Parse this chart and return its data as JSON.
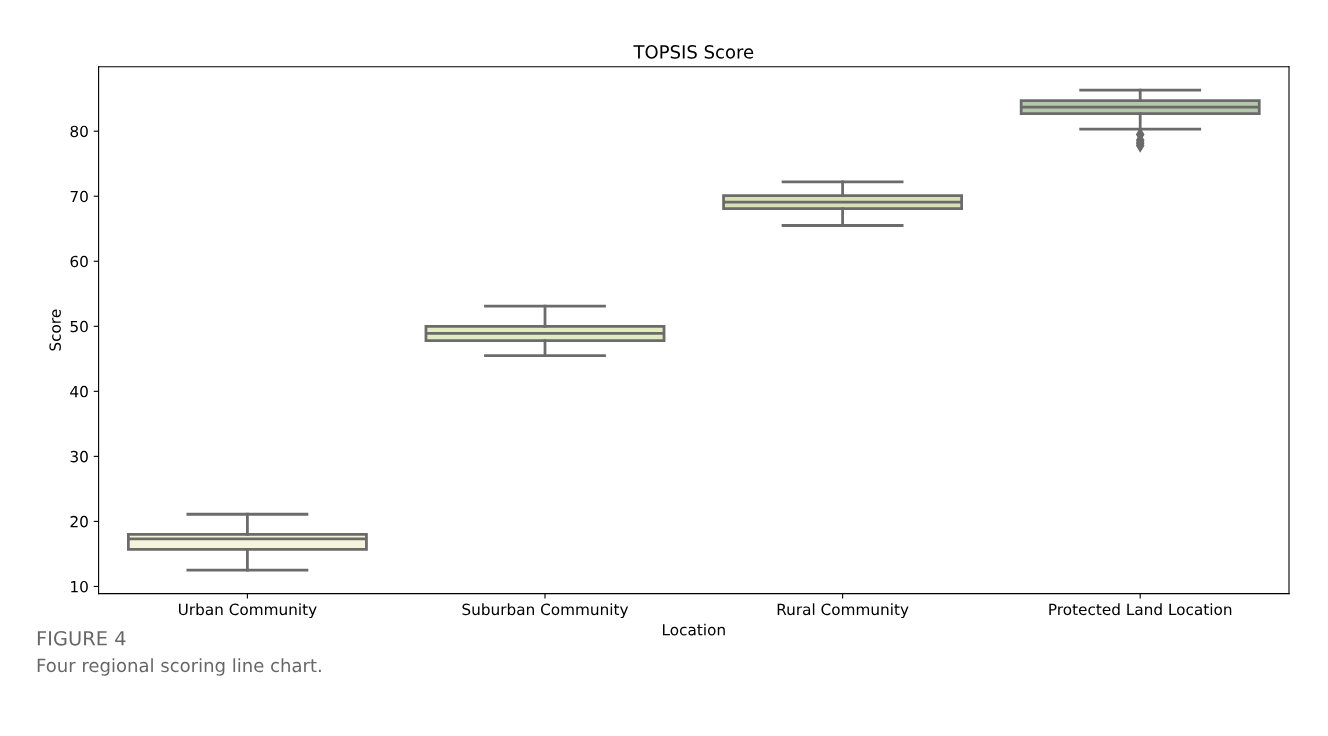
{
  "chart_data": {
    "type": "box",
    "title": "TOPSIS Score",
    "xlabel": "Location",
    "ylabel": "Score",
    "categories": [
      "Urban Community",
      "Suburban Community",
      "Rural Community",
      "Protected Land Location"
    ],
    "boxes": [
      {
        "low": 12.5,
        "q1": 15.7,
        "median": 17.3,
        "q3": 18.0,
        "high": 21.1
      },
      {
        "low": 45.5,
        "q1": 47.8,
        "median": 48.9,
        "q3": 50.0,
        "high": 53.1
      },
      {
        "low": 65.5,
        "q1": 68.1,
        "median": 69.1,
        "q3": 70.1,
        "high": 72.2
      },
      {
        "low": 80.3,
        "q1": 82.7,
        "median": 83.7,
        "q3": 84.7,
        "high": 86.3,
        "outliers": [
          79.5,
          78.6,
          78.2,
          77.8
        ]
      }
    ],
    "colors": [
      "#f2f5dc",
      "#e3ebc3",
      "#d9e0b6",
      "#b3c9aa"
    ],
    "ylim": [
      8.9,
      89.9
    ],
    "yticks": [
      10,
      20,
      30,
      40,
      50,
      60,
      70,
      80
    ],
    "grid": false,
    "annotations": [
      "FIGURE 4",
      "Four regional scoring line chart."
    ]
  }
}
